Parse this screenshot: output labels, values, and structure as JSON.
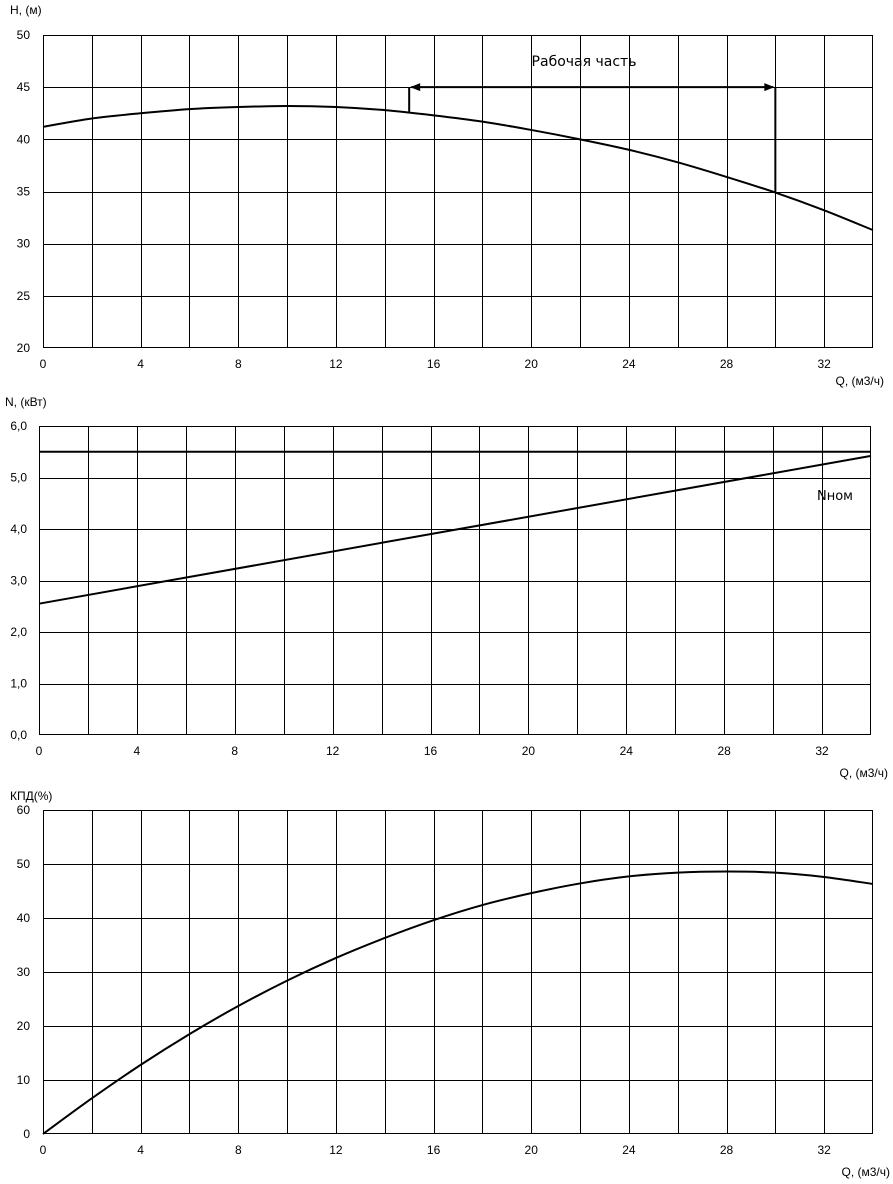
{
  "chart_data": [
    {
      "type": "line",
      "ylabel": "H, (м)",
      "xlabel": "Q, (м3/ч)",
      "xlim": [
        0,
        34
      ],
      "ylim": [
        20,
        50
      ],
      "x_grid_step": 2,
      "y_grid_step": 5,
      "grid": true,
      "x_ticks": [
        "0",
        "4",
        "8",
        "12",
        "16",
        "20",
        "24",
        "28",
        "32"
      ],
      "y_ticks": [
        "20",
        "25",
        "30",
        "35",
        "40",
        "45",
        "50"
      ],
      "series": [
        {
          "x": [
            0,
            2,
            4,
            6,
            8,
            10,
            12,
            14,
            16,
            18,
            20,
            22,
            24,
            26,
            28,
            30,
            32,
            34
          ],
          "values": [
            41.2,
            42.0,
            42.5,
            42.9,
            43.1,
            43.2,
            43.1,
            42.8,
            42.3,
            41.7,
            40.9,
            40.0,
            39.0,
            37.8,
            36.4,
            34.9,
            33.2,
            31.3
          ]
        }
      ],
      "working_range": {
        "label": "Рабочая часть",
        "x_start": 15,
        "x_end": 30,
        "y_level": 45,
        "y_at_start": 42.5,
        "y_at_end": 34.9
      }
    },
    {
      "type": "line",
      "ylabel": "N, (кВт)",
      "xlabel": "Q, (м3/ч)",
      "xlim": [
        0,
        34
      ],
      "ylim": [
        0,
        6
      ],
      "x_grid_step": 2,
      "y_grid_step": 1,
      "grid": true,
      "x_ticks": [
        "0",
        "4",
        "8",
        "12",
        "16",
        "20",
        "24",
        "28",
        "32"
      ],
      "y_ticks": [
        "0,0",
        "1,0",
        "2,0",
        "3,0",
        "4,0",
        "5,0",
        "6,0"
      ],
      "series": [
        {
          "x": [
            0,
            34
          ],
          "values": [
            2.55,
            5.42
          ]
        },
        {
          "name": "Nном",
          "x": [
            0,
            34
          ],
          "values": [
            5.5,
            5.5
          ]
        }
      ],
      "annotation": "Nном"
    },
    {
      "type": "line",
      "ylabel": "КПД(%)",
      "xlabel": "Q, (м3/ч)",
      "xlim": [
        0,
        34
      ],
      "ylim": [
        0,
        60
      ],
      "x_grid_step": 2,
      "y_grid_step": 10,
      "grid": true,
      "x_ticks": [
        "0",
        "4",
        "8",
        "12",
        "16",
        "20",
        "24",
        "28",
        "32"
      ],
      "y_ticks": [
        "0",
        "10",
        "20",
        "30",
        "40",
        "50",
        "60"
      ],
      "series": [
        {
          "x": [
            0,
            2,
            4,
            6,
            8,
            10,
            12,
            14,
            16,
            18,
            20,
            22,
            24,
            26,
            28,
            30,
            32,
            34
          ],
          "values": [
            0,
            6.6,
            12.8,
            18.5,
            23.7,
            28.4,
            32.6,
            36.3,
            39.6,
            42.4,
            44.6,
            46.4,
            47.7,
            48.4,
            48.6,
            48.4,
            47.6,
            46.3
          ]
        }
      ]
    }
  ]
}
